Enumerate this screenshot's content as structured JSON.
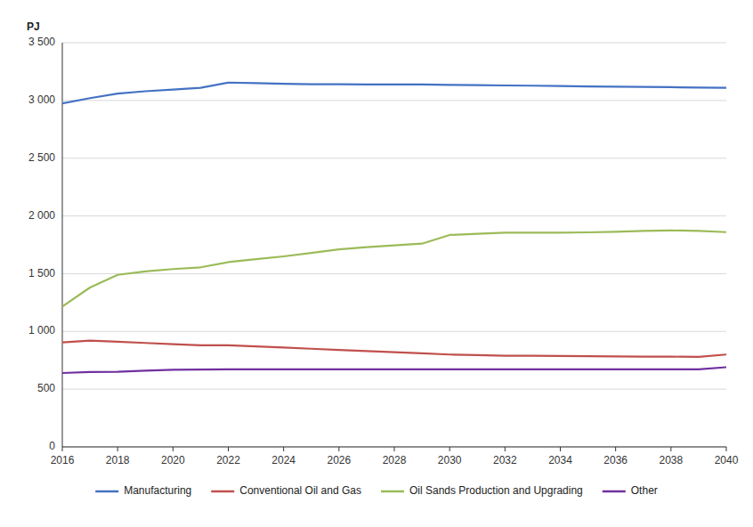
{
  "chart_data": {
    "type": "line",
    "y_label": "PJ",
    "x": [
      2016,
      2017,
      2018,
      2019,
      2020,
      2021,
      2022,
      2023,
      2024,
      2025,
      2026,
      2027,
      2028,
      2029,
      2030,
      2031,
      2032,
      2033,
      2034,
      2035,
      2036,
      2037,
      2038,
      2039,
      2040
    ],
    "series": [
      {
        "name": "Manufacturing",
        "color": "#4472C4",
        "values": [
          2975,
          3020,
          3060,
          3080,
          3095,
          3110,
          3155,
          3150,
          3145,
          3140,
          3140,
          3138,
          3138,
          3138,
          3135,
          3133,
          3130,
          3128,
          3125,
          3122,
          3120,
          3118,
          3115,
          3112,
          3110
        ]
      },
      {
        "name": "Conventional Oil and Gas",
        "color": "#C0504D",
        "values": [
          905,
          920,
          910,
          900,
          890,
          880,
          880,
          870,
          860,
          850,
          840,
          830,
          820,
          810,
          800,
          795,
          790,
          790,
          788,
          785,
          783,
          782,
          781,
          780,
          800
        ]
      },
      {
        "name": "Oil Sands Production and Upgrading",
        "color": "#9BBB59",
        "values": [
          1215,
          1380,
          1490,
          1520,
          1540,
          1555,
          1600,
          1625,
          1650,
          1680,
          1710,
          1730,
          1745,
          1760,
          1835,
          1845,
          1855,
          1855,
          1855,
          1858,
          1862,
          1870,
          1875,
          1870,
          1860
        ]
      },
      {
        "name": "Other",
        "color": "#7030A0",
        "values": [
          640,
          648,
          650,
          660,
          668,
          670,
          672,
          672,
          672,
          672,
          672,
          672,
          672,
          672,
          672,
          672,
          672,
          672,
          672,
          672,
          672,
          672,
          672,
          672,
          690
        ]
      }
    ],
    "xlim": [
      2016,
      2040
    ],
    "xticks": [
      2016,
      2018,
      2020,
      2022,
      2024,
      2026,
      2028,
      2030,
      2032,
      2034,
      2036,
      2038,
      2040
    ],
    "ylim": [
      0,
      3500
    ],
    "yticks": [
      0,
      500,
      {
        "value": 1000,
        "label": "1 000"
      },
      {
        "value": 1500,
        "label": "1 500"
      },
      {
        "value": 2000,
        "label": "2 000"
      },
      {
        "value": 2500,
        "label": "2 500"
      },
      {
        "value": 3000,
        "label": "3 000"
      },
      {
        "value": 3500,
        "label": "3 500"
      }
    ],
    "grid": true,
    "legend": "bottom"
  }
}
